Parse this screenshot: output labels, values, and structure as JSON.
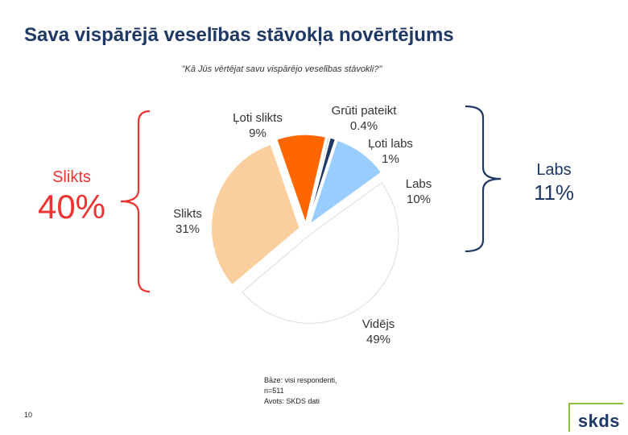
{
  "title": "Sava vispārējā veselības stāvokļa novērtējums",
  "question": "\"Kā Jūs vērtējat savu vispārējo veselības stāvokli?\"",
  "chart_data": {
    "type": "pie",
    "title": "Kā Jūs vērtējat savu vispārējo veselības stāvokli?",
    "slices": [
      {
        "label": "Grūti pateikt",
        "value": 0.4,
        "display": "0.4%",
        "color": "#c9d4de"
      },
      {
        "label": "Ļoti labs",
        "value": 1,
        "display": "1%",
        "color": "#1f3864"
      },
      {
        "label": "Labs",
        "value": 10,
        "display": "10%",
        "color": "#99ccff"
      },
      {
        "label": "Vidējs",
        "value": 49,
        "display": "49%",
        "color": "#ffffff"
      },
      {
        "label": "Slikts",
        "value": 31,
        "display": "31%",
        "color": "#fbcf9d"
      },
      {
        "label": "Ļoti slikts",
        "value": 9,
        "display": "9%",
        "color": "#ff6600"
      }
    ],
    "groups": [
      {
        "label": "Slikts",
        "value": "40%",
        "color": "#ee3333",
        "side": "left"
      },
      {
        "label": "Labs",
        "value": "11%",
        "color": "#1f3864",
        "side": "right"
      }
    ]
  },
  "footnote": [
    "Bāze: visi respondenti,",
    "n=511",
    "Avots: SKDS dati"
  ],
  "page_number": "10",
  "logo_text": "skds",
  "colors": {
    "bracket_left": "#ee3333",
    "bracket_right": "#1f3864",
    "title": "#1f3864"
  }
}
